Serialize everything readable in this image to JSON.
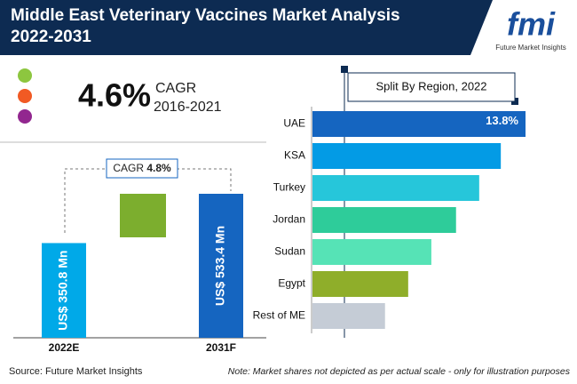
{
  "header": {
    "title": "Middle East Veterinary Vaccines Market Analysis 2022-2031",
    "logo": "fmi",
    "logo_caption": "Future Market Insights"
  },
  "highlight": {
    "value": "4.6%",
    "label": "CAGR",
    "period": "2016-2021"
  },
  "chart_data": [
    {
      "type": "bar",
      "annotation_label": "CAGR",
      "annotation_value": "4.8%",
      "categories": [
        "2022E",
        "2031F"
      ],
      "values": [
        350.8,
        533.4
      ],
      "value_labels": [
        "US$ 350.8 Mn",
        "US$ 533.4 Mn"
      ],
      "colors": [
        "#00a9e8",
        "#1565c0"
      ]
    },
    {
      "type": "barh",
      "title": "Split By Region, 2022",
      "categories": [
        "UAE",
        "KSA",
        "Turkey",
        "Jordan",
        "Sudan",
        "Egypt",
        "Rest of ME"
      ],
      "values": [
        13.8,
        12.2,
        10.8,
        9.3,
        7.7,
        6.2,
        4.7
      ],
      "value_labels": [
        "13.8%",
        null,
        null,
        null,
        null,
        null,
        null
      ],
      "colors": [
        "#1565c0",
        "#039be5",
        "#26c6da",
        "#2ecc9a",
        "#56e3b6",
        "#8fae2a",
        "#c5ccd6"
      ]
    }
  ],
  "footer": {
    "source": "Source: Future Market Insights",
    "note": "Note: Market shares not depicted as per actual scale - only for illustration purposes"
  }
}
